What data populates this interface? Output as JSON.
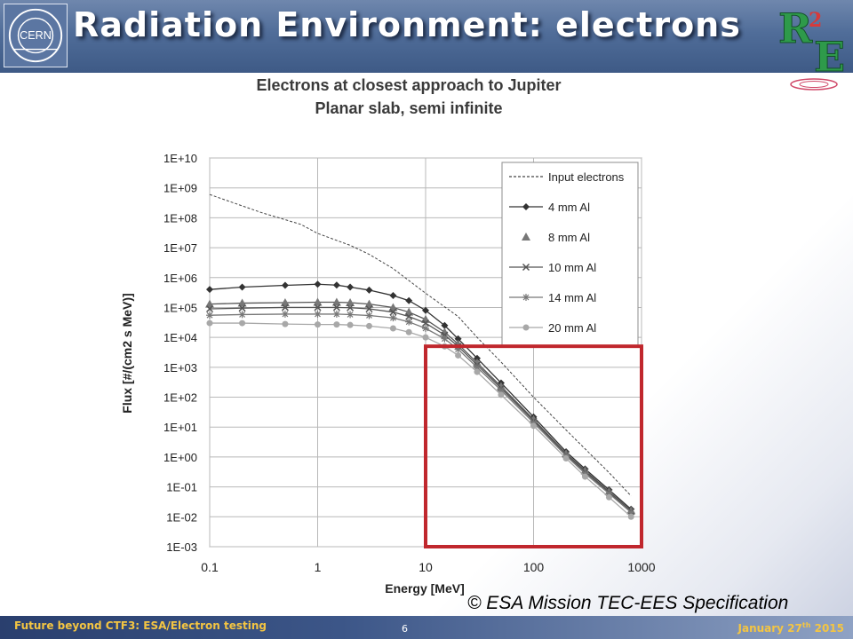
{
  "slide": {
    "title": "Radiation Environment: electrons",
    "logo_left": "CERN",
    "copyright": "© ESA Mission TEC-EES Specification",
    "footer_left": "Future beyond CTF3: ESA/Electron testing",
    "page_number": "6",
    "footer_date_main": "January 27",
    "footer_date_sup": "th",
    "footer_date_year": " 2015"
  },
  "colors": {
    "header": "#506d99",
    "highlight_box": "#c0272d",
    "footer_text": "#f4c542"
  },
  "chart_data": {
    "type": "line",
    "title": "Electrons at closest approach to Jupiter",
    "subtitle": "Planar slab, semi infinite",
    "xlabel": "Energy [MeV]",
    "ylabel": "Flux [#/(cm2 s MeV)]",
    "x_scale": "log",
    "y_scale": "log",
    "xlim": [
      0.1,
      1000
    ],
    "ylim": [
      0.001,
      10000000000
    ],
    "x_ticks": [
      "0.1",
      "1",
      "10",
      "100",
      "1000"
    ],
    "y_ticks": [
      "1E+10",
      "1E+09",
      "1E+08",
      "1E+07",
      "1E+06",
      "1E+05",
      "1E+04",
      "1E+03",
      "1E+02",
      "1E+01",
      "1E+00",
      "1E-01",
      "1E-02",
      "1E-03"
    ],
    "grid": true,
    "legend_position": "top-right",
    "highlight_region": {
      "x": [
        10,
        1000
      ],
      "y": [
        0.001,
        10000
      ]
    },
    "series": [
      {
        "name": "Input electrons",
        "style": "dashed",
        "marker": "none",
        "x": [
          0.1,
          0.3,
          0.7,
          1,
          2,
          3,
          5,
          10,
          20,
          30,
          50,
          100,
          200,
          500,
          800
        ],
        "y": [
          600000000,
          150000000,
          60000000,
          30000000,
          12000000,
          6000000,
          2000000,
          300000,
          50000,
          10000,
          1500,
          100,
          8,
          0.3,
          0.05
        ]
      },
      {
        "name": "4 mm Al",
        "style": "solid",
        "marker": "diamond",
        "x": [
          0.1,
          0.2,
          0.5,
          1,
          1.5,
          2,
          3,
          5,
          7,
          10,
          15,
          20,
          30,
          50,
          100,
          200,
          300,
          500,
          800
        ],
        "y": [
          400000,
          480000,
          550000,
          600000,
          560000,
          480000,
          380000,
          250000,
          170000,
          80000,
          25000,
          9000,
          2000,
          300,
          22,
          1.5,
          0.4,
          0.08,
          0.018
        ]
      },
      {
        "name": "8 mm Al",
        "style": "solid",
        "marker": "triangle",
        "x": [
          0.1,
          0.2,
          0.5,
          1,
          1.5,
          2,
          3,
          5,
          7,
          10,
          15,
          20,
          30,
          50,
          100,
          200,
          300,
          500,
          800
        ],
        "y": [
          130000,
          140000,
          145000,
          150000,
          150000,
          145000,
          130000,
          100000,
          70000,
          40000,
          15000,
          6000,
          1400,
          230,
          18,
          1.3,
          0.35,
          0.07,
          0.016
        ]
      },
      {
        "name": "10 mm Al",
        "style": "solid",
        "marker": "x",
        "x": [
          0.1,
          0.2,
          0.5,
          1,
          1.5,
          2,
          3,
          5,
          7,
          10,
          15,
          20,
          30,
          50,
          100,
          200,
          300,
          500,
          800
        ],
        "y": [
          90000,
          95000,
          100000,
          100000,
          100000,
          98000,
          90000,
          70000,
          50000,
          30000,
          12000,
          5000,
          1200,
          200,
          16,
          1.2,
          0.32,
          0.065,
          0.015
        ]
      },
      {
        "name": "14 mm Al",
        "style": "solid",
        "marker": "star",
        "x": [
          0.1,
          0.2,
          0.5,
          1,
          1.5,
          2,
          3,
          5,
          7,
          10,
          15,
          20,
          30,
          50,
          100,
          200,
          300,
          500,
          800
        ],
        "y": [
          55000,
          58000,
          60000,
          60000,
          60000,
          58000,
          54000,
          45000,
          33000,
          20000,
          9000,
          4000,
          1000,
          170,
          14,
          1.1,
          0.28,
          0.06,
          0.014
        ]
      },
      {
        "name": "20 mm Al",
        "style": "solid",
        "marker": "circle",
        "x": [
          0.1,
          0.2,
          0.5,
          1,
          1.5,
          2,
          3,
          5,
          7,
          10,
          15,
          20,
          30,
          50,
          100,
          200,
          300,
          500,
          800
        ],
        "y": [
          30000,
          30000,
          28000,
          27000,
          27000,
          26000,
          24000,
          20000,
          15000,
          10000,
          5000,
          2500,
          700,
          120,
          11,
          0.9,
          0.22,
          0.045,
          0.01
        ]
      }
    ]
  }
}
